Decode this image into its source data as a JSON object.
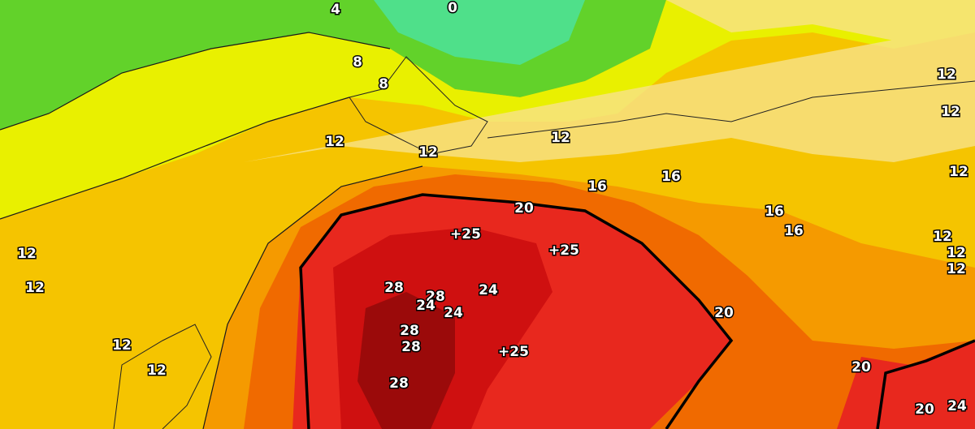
{
  "labels": [
    "4",
    "0",
    "8",
    "8",
    "12",
    "12",
    "12",
    "16",
    "16",
    "20",
    "+25",
    "+25",
    "16",
    "16",
    "12",
    "12",
    "12",
    "12",
    "12",
    "12",
    "12",
    "12",
    "12",
    "12",
    "28",
    "28",
    "24",
    "24",
    "24",
    "28",
    "28",
    "+25",
    "28",
    "20",
    "20",
    "20",
    "24"
  ]
}
